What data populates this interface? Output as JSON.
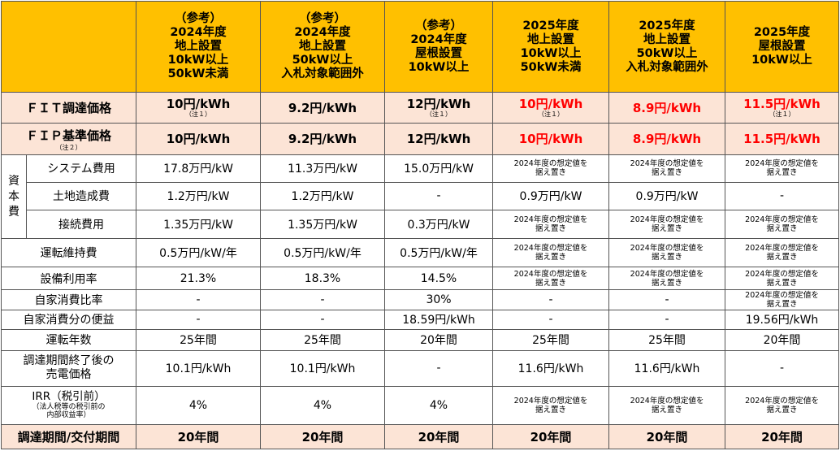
{
  "columns": [
    {
      "lines": [
        "（参考）",
        "2024年度",
        "地上設置",
        "10kW以上",
        "50kW未満"
      ]
    },
    {
      "lines": [
        "（参考）",
        "2024年度",
        "地上設置",
        "50kW以上",
        "入札対象範囲外"
      ]
    },
    {
      "lines": [
        "（参考）",
        "2024年度",
        "屋根設置",
        "10kW以上"
      ]
    },
    {
      "lines": [
        "2025年度",
        "地上設置",
        "10kW以上",
        "50kW未満"
      ]
    },
    {
      "lines": [
        "2025年度",
        "地上設置",
        "50kW以上",
        "入札対象範囲外"
      ]
    },
    {
      "lines": [
        "2025年度",
        "屋根設置",
        "10kW以上"
      ]
    }
  ],
  "fit_row": {
    "label": "ＦＩＴ調達価格",
    "cells": [
      {
        "value": "10円/kWh",
        "note": "（注１）"
      },
      {
        "value": "9.2円/kWh",
        "note": ""
      },
      {
        "value": "12円/kWh",
        "note": "（注１）"
      },
      {
        "value": "10円/kWh",
        "note": "（注１）"
      },
      {
        "value": "8.9円/kWh",
        "note": ""
      },
      {
        "value": "11.5円/kWh",
        "note": "（注１）"
      }
    ]
  },
  "fip_row": {
    "label": "ＦＩＰ基準価格",
    "note": "（注２）",
    "cells": [
      "10円/kWh",
      "9.2円/kWh",
      "12円/kWh",
      "10円/kWh",
      "8.9円/kWh",
      "11.5円/kWh"
    ]
  },
  "capital_label": [
    "資",
    "本",
    "費"
  ],
  "placeholder": [
    "2024年度の想定値を",
    "据え置き"
  ],
  "rows": {
    "system": {
      "label": "システム費用",
      "cells": [
        "17.8万円/kW",
        "11.3万円/kW",
        "15.0万円/kW"
      ]
    },
    "land": {
      "label": "土地造成費",
      "cells": [
        "1.2万円/kW",
        "1.2万円/kW",
        "-",
        "0.9万円/kW",
        "0.9万円/kW",
        "-"
      ]
    },
    "connection": {
      "label": "接続費用",
      "cells": [
        "1.35万円/kW",
        "1.35万円/kW",
        "0.3万円/kW"
      ]
    },
    "om": {
      "label": "運転維持費",
      "cells": [
        "0.5万円/kW/年",
        "0.5万円/kW/年",
        "0.5万円/kW/年"
      ]
    },
    "capacity": {
      "label": "設備利用率",
      "cells": [
        "21.3%",
        "18.3%",
        "14.5%"
      ]
    },
    "selfratio": {
      "label": "自家消費比率",
      "cells": [
        "-",
        "-",
        "30%",
        "-",
        "-"
      ]
    },
    "selfbenefit": {
      "label": "自家消費分の便益",
      "cells": [
        "-",
        "-",
        "18.59円/kWh",
        "-",
        "-",
        "19.56円/kWh"
      ]
    },
    "years": {
      "label": "運転年数",
      "cells": [
        "25年間",
        "25年間",
        "20年間",
        "25年間",
        "25年間",
        "20年間"
      ]
    },
    "postprice": {
      "label": [
        "調達期間終了後の",
        "売電価格"
      ],
      "cells": [
        "10.1円/kWh",
        "10.1円/kWh",
        "-",
        "11.6円/kWh",
        "11.6円/kWh",
        "-"
      ]
    },
    "irr": {
      "label": "IRR（税引前）",
      "sublabel": [
        "（法人税等の税引前の",
        "内部収益率）"
      ],
      "cells": [
        "4%",
        "4%",
        "4%"
      ]
    },
    "period": {
      "label": "調達期間/交付期間",
      "cells": [
        "20年間",
        "20年間",
        "20年間",
        "20年間",
        "20年間",
        "20年間"
      ]
    }
  }
}
